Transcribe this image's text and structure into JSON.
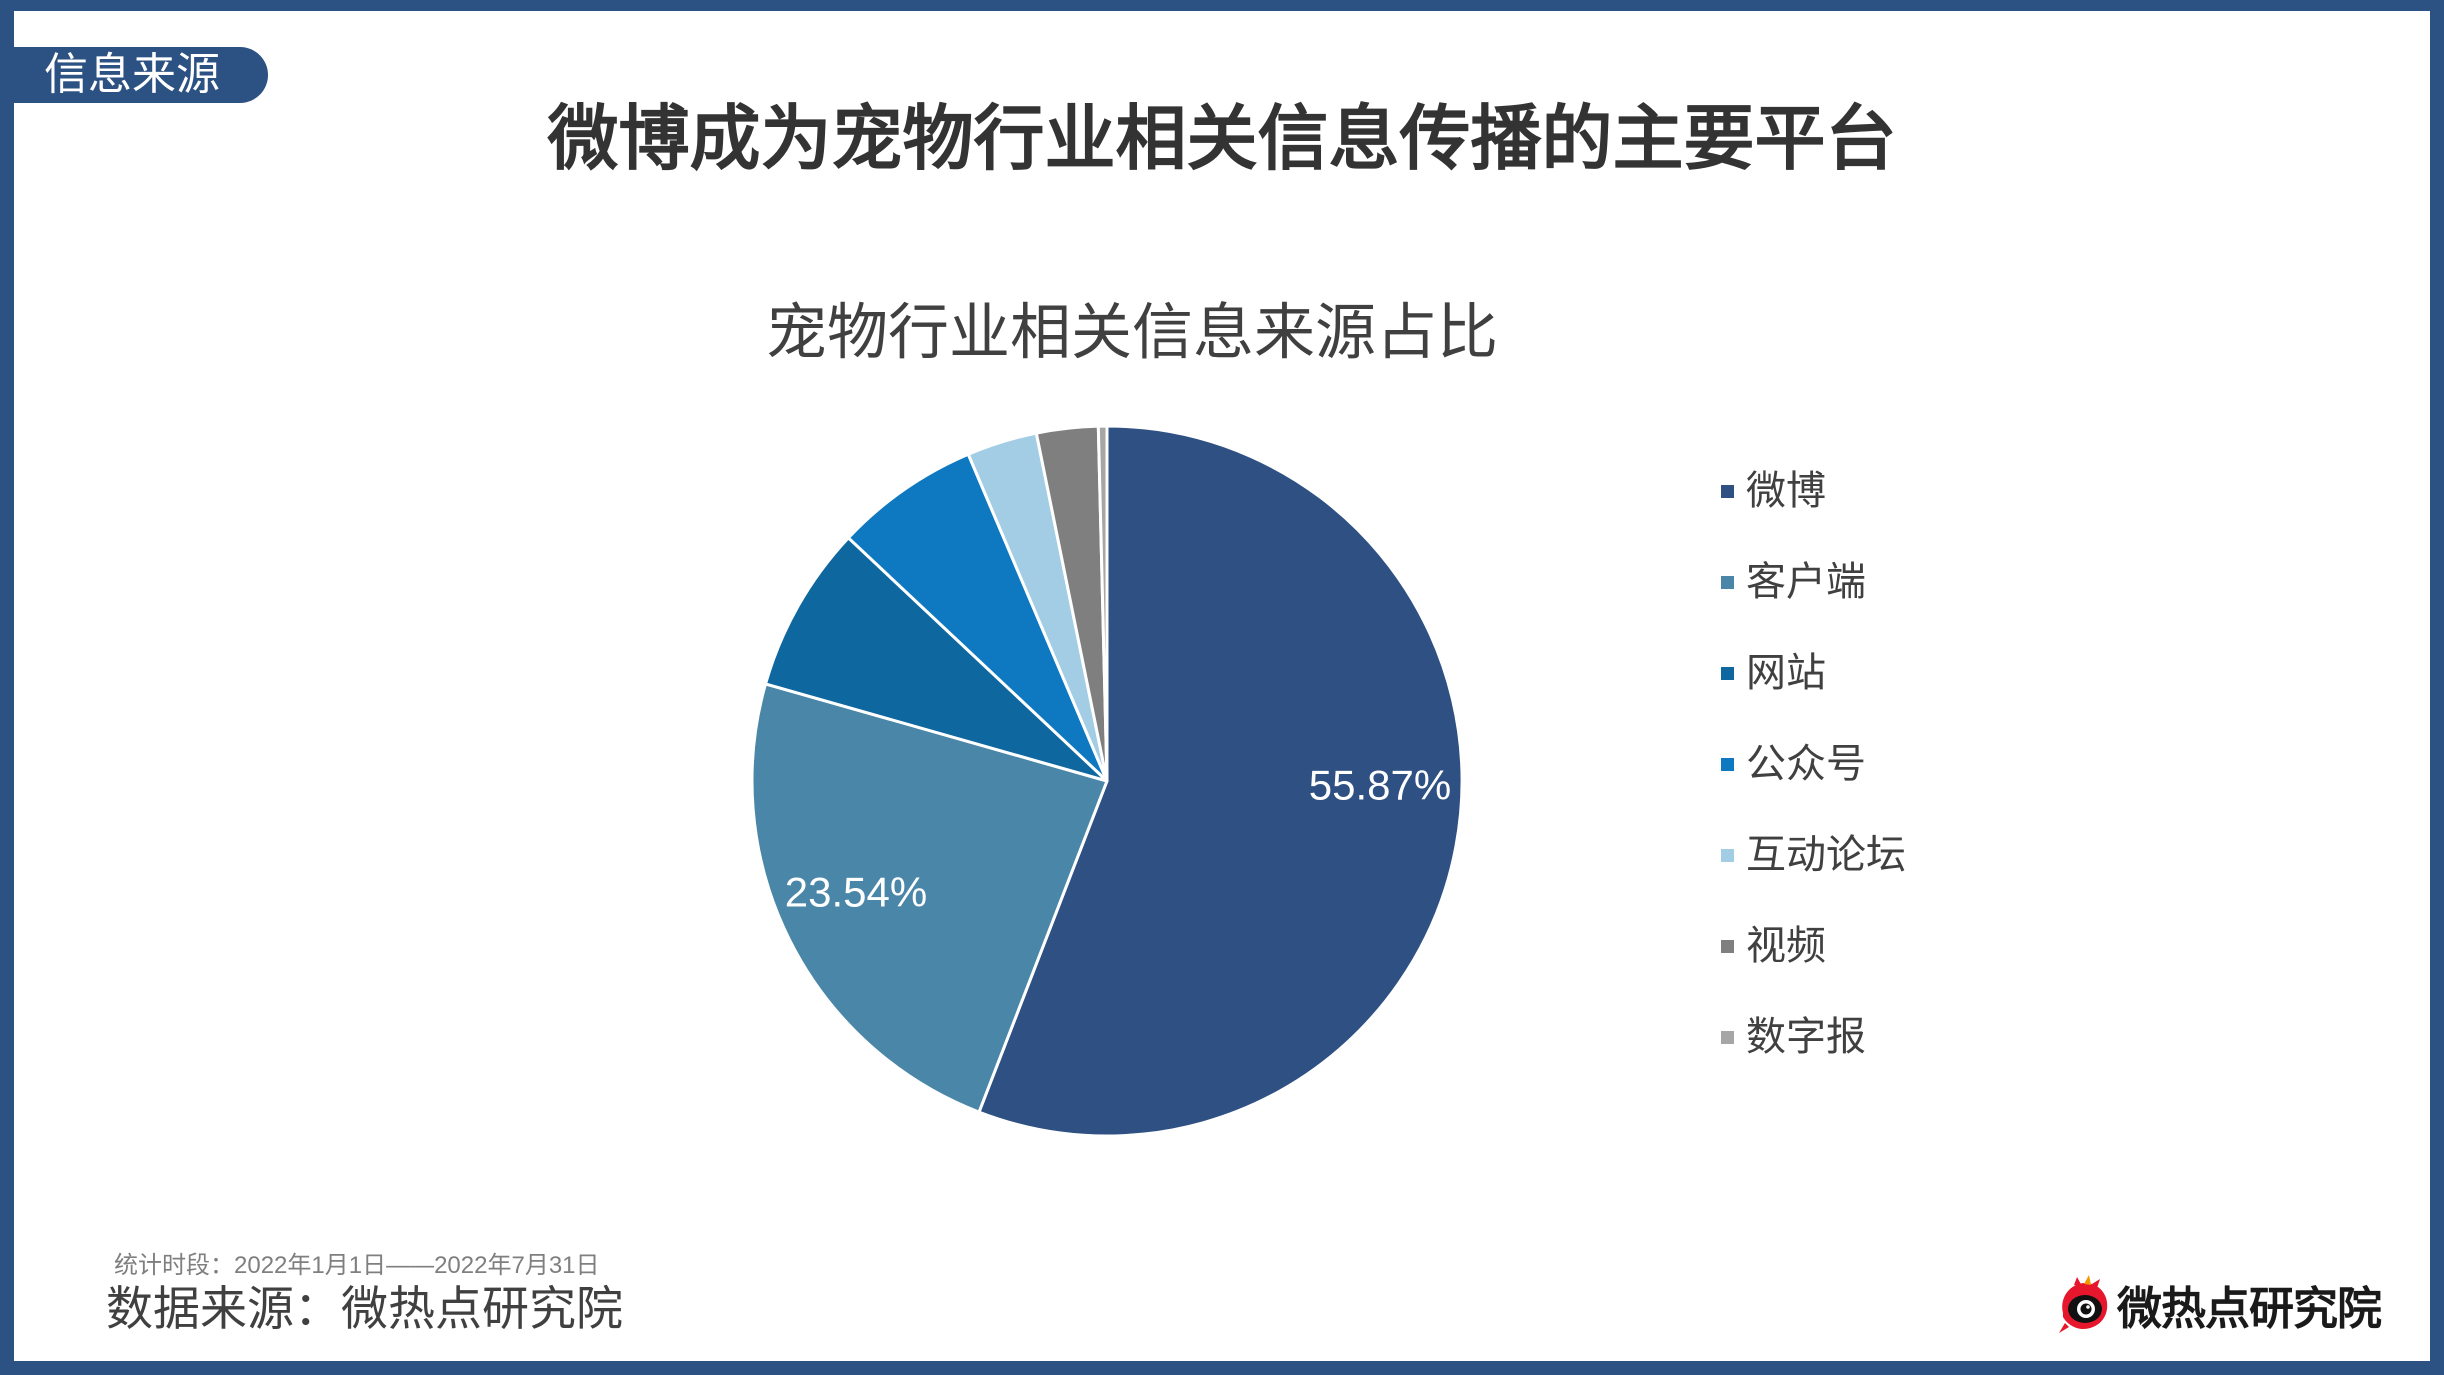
{
  "badge": {
    "label": "信息来源"
  },
  "page_title": "微博成为宠物行业相关信息传播的主要平台",
  "chart_data": {
    "type": "pie",
    "title": "宠物行业相关信息来源占比",
    "categories": [
      "微博",
      "客户端",
      "网站",
      "公众号",
      "互动论坛",
      "视频",
      "数字报"
    ],
    "values": [
      55.87,
      23.54,
      7.6,
      6.6,
      3.2,
      2.8,
      0.39
    ],
    "data_labels": [
      "55.87%",
      "23.54%",
      null,
      null,
      null,
      null,
      null
    ],
    "colors": [
      "#2e5082",
      "#4a86a8",
      "#0e679e",
      "#0e79c0",
      "#a3cde5",
      "#7f7f7f",
      "#a6a6a6"
    ],
    "direction": "clockwise",
    "legend_position": "right"
  },
  "footer": {
    "period": "统计时段：2022年1月1日——2022年7月31日",
    "source": "数据来源：微热点研究院"
  },
  "logo": {
    "text": "微热点研究院",
    "icon": "weibo-eye-icon"
  },
  "theme": {
    "frame": "#2c5183",
    "logo_red": "#e6162d"
  }
}
